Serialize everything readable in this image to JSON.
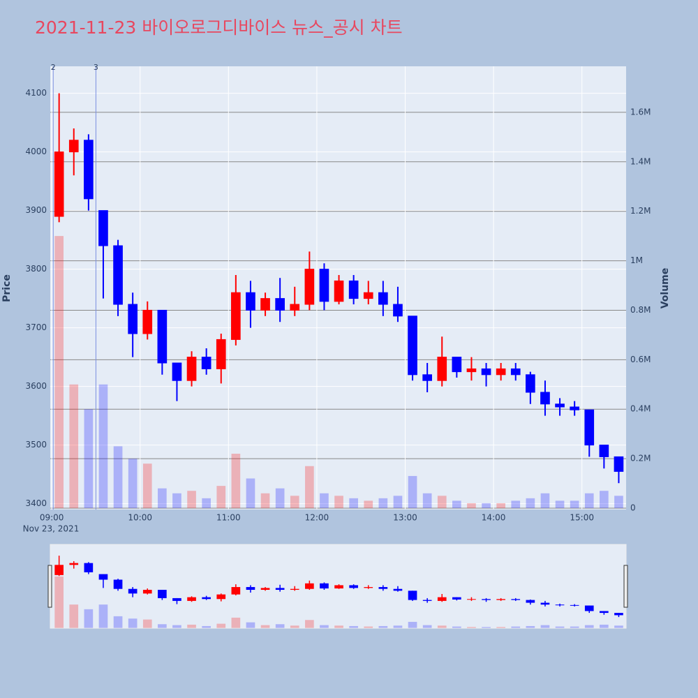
{
  "chart_data": {
    "type": "candlestick",
    "title": "2021-11-23 바이오로그디바이스 뉴스_공시 차트",
    "y_title": "Price",
    "y2_title": "Volume",
    "x_date_label": "Nov 23, 2021",
    "increasing_color": "#ff0000",
    "decreasing_color": "#0000ff",
    "x": [
      "09:00",
      "09:10",
      "09:20",
      "09:30",
      "09:40",
      "09:50",
      "10:00",
      "10:10",
      "10:20",
      "10:30",
      "10:40",
      "10:50",
      "11:00",
      "11:10",
      "11:20",
      "11:30",
      "11:40",
      "11:50",
      "12:00",
      "12:10",
      "12:20",
      "12:30",
      "12:40",
      "12:50",
      "13:00",
      "13:10",
      "13:20",
      "13:30",
      "13:40",
      "13:50",
      "14:00",
      "14:10",
      "14:20",
      "14:30",
      "14:40",
      "14:50",
      "15:00",
      "15:10",
      "15:20"
    ],
    "open": [
      3890,
      4000,
      4020,
      3900,
      3840,
      3740,
      3690,
      3730,
      3640,
      3610,
      3650,
      3630,
      3680,
      3760,
      3730,
      3750,
      3730,
      3740,
      3800,
      3745,
      3780,
      3750,
      3760,
      3740,
      3720,
      3620,
      3610,
      3650,
      3625,
      3630,
      3620,
      3630,
      3620,
      3590,
      3570,
      3565,
      3560,
      3500,
      3480
    ],
    "high": [
      4100,
      4040,
      4030,
      3900,
      3850,
      3760,
      3745,
      3730,
      3640,
      3660,
      3665,
      3690,
      3790,
      3780,
      3760,
      3785,
      3770,
      3830,
      3810,
      3790,
      3790,
      3780,
      3780,
      3770,
      3720,
      3640,
      3685,
      3650,
      3650,
      3640,
      3640,
      3640,
      3625,
      3610,
      3580,
      3575,
      3560,
      3500,
      3480
    ],
    "low": [
      3880,
      3960,
      3900,
      3750,
      3720,
      3650,
      3680,
      3620,
      3575,
      3600,
      3620,
      3605,
      3670,
      3700,
      3720,
      3710,
      3720,
      3730,
      3730,
      3740,
      3740,
      3740,
      3720,
      3710,
      3610,
      3590,
      3600,
      3615,
      3610,
      3600,
      3610,
      3610,
      3570,
      3550,
      3550,
      3550,
      3480,
      3460,
      3435
    ],
    "close": [
      4000,
      4020,
      3920,
      3840,
      3740,
      3690,
      3730,
      3640,
      3610,
      3650,
      3630,
      3680,
      3760,
      3730,
      3750,
      3730,
      3740,
      3800,
      3745,
      3780,
      3750,
      3760,
      3740,
      3720,
      3620,
      3610,
      3650,
      3625,
      3630,
      3620,
      3630,
      3620,
      3590,
      3570,
      3565,
      3560,
      3500,
      3480,
      3455
    ],
    "volume": [
      1100000,
      500000,
      400000,
      500000,
      250000,
      200000,
      180000,
      80000,
      60000,
      70000,
      40000,
      90000,
      220000,
      120000,
      60000,
      80000,
      50000,
      170000,
      60000,
      50000,
      40000,
      30000,
      40000,
      50000,
      130000,
      60000,
      50000,
      30000,
      20000,
      20000,
      20000,
      30000,
      40000,
      60000,
      30000,
      30000,
      60000,
      70000,
      50000
    ],
    "events": [
      {
        "x": "09:01",
        "label": "2"
      },
      {
        "x": "09:30",
        "label": "3"
      }
    ],
    "xlim": [
      "08:59",
      "15:30"
    ],
    "xticks": [
      "09:00",
      "10:00",
      "11:00",
      "12:00",
      "13:00",
      "14:00",
      "15:00"
    ],
    "ylim": [
      3390,
      4146
    ],
    "yticks": [
      3400,
      3500,
      3600,
      3700,
      3800,
      3900,
      4000,
      4100
    ],
    "y2lim": [
      -5600,
      1786000
    ],
    "y2ticks": [
      0,
      {
        "value": 200000,
        "label": "0.2M"
      },
      {
        "value": 400000,
        "label": "0.4M"
      },
      {
        "value": 600000,
        "label": "0.6M"
      },
      {
        "value": 800000,
        "label": "0.8M"
      },
      {
        "value": 1000000,
        "label": "1M"
      },
      {
        "value": 1200000,
        "label": "1.2M"
      },
      {
        "value": 1400000,
        "label": "1.4M"
      },
      {
        "value": 1600000,
        "label": "1.6M"
      }
    ],
    "grid": true
  }
}
